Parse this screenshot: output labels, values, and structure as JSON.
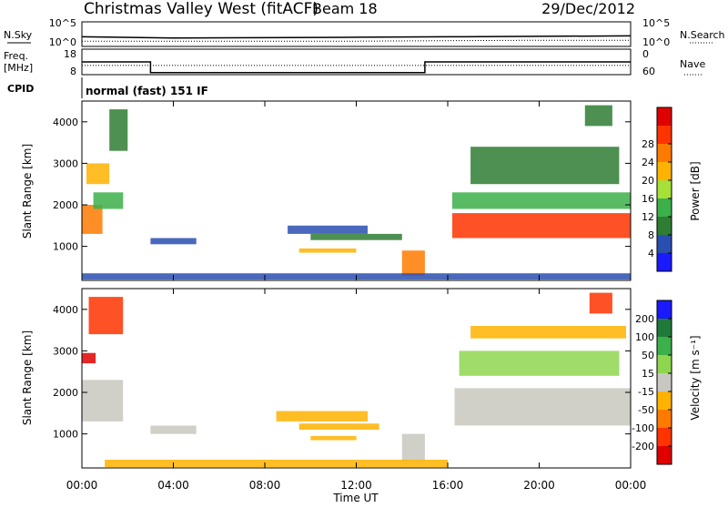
{
  "header": {
    "title": "Christmas Valley West (fitACF)",
    "beam": "Beam 18",
    "date": "29/Dec/2012"
  },
  "top_panels": {
    "nsky_label": "N.Sky",
    "nsearch_label": "N.Search",
    "nsky_ticks": [
      "10^5",
      "10^0"
    ],
    "nsky_right_ticks": [
      "10^5",
      "10^0"
    ],
    "freq_label_1": "Freq.",
    "freq_label_2": "[MHz]",
    "freq_ticks": [
      "18",
      "8"
    ],
    "nave_label": "Nave",
    "nave_ticks": [
      "60",
      "0"
    ],
    "cpid_label": "CPID",
    "cpid_text": "normal (fast) 151 IF"
  },
  "x_axis": {
    "label": "Time UT",
    "ticks": [
      "00:00",
      "04:00",
      "08:00",
      "12:00",
      "16:00",
      "20:00",
      "00:00"
    ]
  },
  "colors": {
    "power_scale": [
      "#1a1aff",
      "#2a4fb0",
      "#2e7d32",
      "#3cb04a",
      "#a8e03a",
      "#ffb300",
      "#ff7a00",
      "#ff3300",
      "#e00000"
    ],
    "velocity_scale": [
      "#1a1aff",
      "#1f7a3a",
      "#3cb04a",
      "#8fd64f",
      "#c8c8c0",
      "#ffb300",
      "#ff7a00",
      "#ff3300",
      "#e00000"
    ]
  },
  "chart_data": [
    {
      "type": "line",
      "panel": "sky-noise",
      "ylabel": "N.Sky",
      "y_scale": "log",
      "ylim_ticks": [
        "10^0",
        "10^5"
      ],
      "series": [
        {
          "name": "N.Sky",
          "style": "solid",
          "x": [
            0,
            4,
            8,
            12,
            16,
            20,
            24
          ],
          "values_log10": [
            2.0,
            1.7,
            1.8,
            1.9,
            2.0,
            2.1,
            2.2
          ]
        },
        {
          "name": "N.Search",
          "style": "dotted",
          "x": [
            0,
            4,
            8,
            12,
            16,
            20,
            24
          ],
          "values_log10": [
            1.0,
            1.0,
            1.0,
            1.0,
            1.1,
            1.2,
            1.2
          ]
        }
      ]
    },
    {
      "type": "line",
      "panel": "frequency-nave",
      "ylabel": "Freq. [MHz]",
      "y_ticks": [
        "8",
        "18"
      ],
      "series": [
        {
          "name": "Freq.",
          "style": "solid",
          "x": [
            0,
            3.0,
            3.0,
            15.0,
            15.0,
            24
          ],
          "values": [
            13.0,
            13.0,
            8.5,
            8.5,
            13.0,
            13.0
          ]
        },
        {
          "name": "Nave",
          "style": "dotted",
          "x": [
            0,
            24
          ],
          "values": [
            21,
            21
          ]
        }
      ],
      "right_ylabel": "Nave",
      "right_ticks": [
        "0",
        "60"
      ]
    },
    {
      "type": "heatmap",
      "panel": "power",
      "xlabel": "Time UT",
      "ylabel": "Slant Range [km]",
      "xlim_hours": [
        0,
        24
      ],
      "ylim": [
        180,
        4500
      ],
      "y_ticks": [
        1000,
        2000,
        3000,
        4000
      ],
      "colorbar": {
        "label": "Power [dB]",
        "ticks": [
          4,
          8,
          12,
          16,
          20,
          24,
          28
        ],
        "range": [
          0,
          32
        ]
      },
      "regions": [
        {
          "t0": 0.0,
          "t1": 0.9,
          "r0": 1300,
          "r1": 2000,
          "value": 24
        },
        {
          "t0": 0.2,
          "t1": 1.2,
          "r0": 2500,
          "r1": 3000,
          "value": 18
        },
        {
          "t0": 0.5,
          "t1": 1.8,
          "r0": 1900,
          "r1": 2300,
          "value": 14
        },
        {
          "t0": 1.2,
          "t1": 2.0,
          "r0": 3300,
          "r1": 4300,
          "value": 8
        },
        {
          "t0": 3.0,
          "t1": 5.0,
          "r0": 1050,
          "r1": 1200,
          "value": 6
        },
        {
          "t0": 9.0,
          "t1": 12.5,
          "r0": 1300,
          "r1": 1500,
          "value": 6
        },
        {
          "t0": 10.0,
          "t1": 14.0,
          "r0": 1150,
          "r1": 1300,
          "value": 8
        },
        {
          "t0": 9.5,
          "t1": 12.0,
          "r0": 850,
          "r1": 950,
          "value": 18
        },
        {
          "t0": 14.0,
          "t1": 15.0,
          "r0": 300,
          "r1": 900,
          "value": 22
        },
        {
          "t0": 0.0,
          "t1": 24.0,
          "r0": 200,
          "r1": 350,
          "value": 6
        },
        {
          "t0": 16.2,
          "t1": 24.0,
          "r0": 1200,
          "r1": 1800,
          "value": 26
        },
        {
          "t0": 16.2,
          "t1": 24.0,
          "r0": 1900,
          "r1": 2300,
          "value": 12
        },
        {
          "t0": 17.0,
          "t1": 23.5,
          "r0": 2500,
          "r1": 3400,
          "value": 8
        },
        {
          "t0": 22.0,
          "t1": 23.2,
          "r0": 3900,
          "r1": 4400,
          "value": 10
        }
      ]
    },
    {
      "type": "heatmap",
      "panel": "velocity",
      "xlabel": "Time UT",
      "ylabel": "Slant Range [km]",
      "xlim_hours": [
        0,
        24
      ],
      "ylim": [
        180,
        4500
      ],
      "y_ticks": [
        1000,
        2000,
        3000,
        4000
      ],
      "colorbar": {
        "label": "Velocity [m s⁻¹]",
        "ticks": [
          "200",
          "100",
          "50",
          "15",
          "-15",
          "-50",
          "-100",
          "-200"
        ],
        "range": [
          -250,
          250
        ]
      },
      "regions": [
        {
          "t0": 0.0,
          "t1": 1.8,
          "r0": 1300,
          "r1": 2300,
          "value": 0
        },
        {
          "t0": 0.0,
          "t1": 0.6,
          "r0": 2700,
          "r1": 2950,
          "value": -200
        },
        {
          "t0": 0.3,
          "t1": 1.8,
          "r0": 3400,
          "r1": 4300,
          "value": -150
        },
        {
          "t0": 3.0,
          "t1": 5.0,
          "r0": 1000,
          "r1": 1200,
          "value": 0
        },
        {
          "t0": 8.5,
          "t1": 12.5,
          "r0": 1300,
          "r1": 1550,
          "value": -60
        },
        {
          "t0": 9.5,
          "t1": 13.0,
          "r0": 1100,
          "r1": 1250,
          "value": -40
        },
        {
          "t0": 10.0,
          "t1": 12.0,
          "r0": 850,
          "r1": 950,
          "value": -50
        },
        {
          "t0": 14.0,
          "t1": 15.0,
          "r0": 350,
          "r1": 1000,
          "value": 0
        },
        {
          "t0": 1.0,
          "t1": 16.0,
          "r0": 200,
          "r1": 380,
          "value": -40
        },
        {
          "t0": 16.3,
          "t1": 24.0,
          "r0": 1200,
          "r1": 2100,
          "value": 0
        },
        {
          "t0": 16.5,
          "t1": 23.5,
          "r0": 2400,
          "r1": 3000,
          "value": 30
        },
        {
          "t0": 17.0,
          "t1": 23.8,
          "r0": 3300,
          "r1": 3600,
          "value": -60
        },
        {
          "t0": 22.2,
          "t1": 23.2,
          "r0": 3900,
          "r1": 4400,
          "value": -180
        }
      ]
    }
  ]
}
